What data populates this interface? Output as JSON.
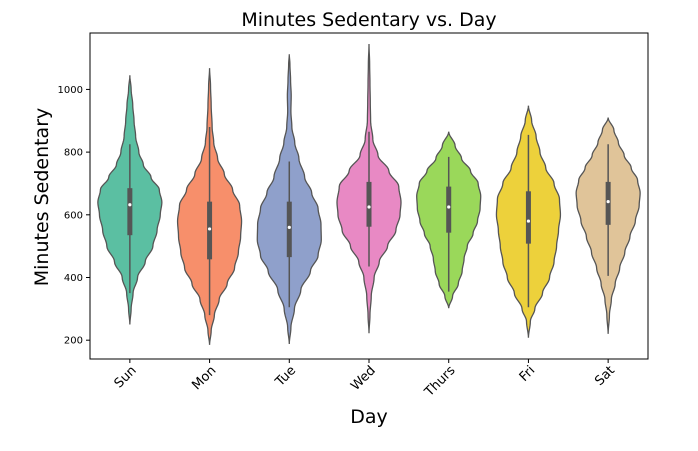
{
  "chart_data": {
    "type": "violin",
    "title": "Minutes Sedentary vs. Day",
    "xlabel": "Day",
    "ylabel": "Minutes Sedentary",
    "ylim": [
      140,
      1180
    ],
    "yticks": [
      200,
      400,
      600,
      800,
      1000
    ],
    "categories": [
      "Sun",
      "Mon",
      "Tue",
      "Wed",
      "Thurs",
      "Fri",
      "Sat"
    ],
    "colors": [
      "#5bbfa2",
      "#f78f6b",
      "#8fa0cb",
      "#e889c4",
      "#9ad85a",
      "#edd13b",
      "#e0c499"
    ],
    "outline_color": "#555555",
    "violins": [
      {
        "name": "Sun",
        "min": 250,
        "q1": 535,
        "median": 632,
        "q3": 685,
        "whisker_low": 350,
        "whisker_high": 825,
        "max": 1045,
        "profile": [
          [
            250,
            0
          ],
          [
            300,
            0.04
          ],
          [
            350,
            0.1
          ],
          [
            400,
            0.24
          ],
          [
            450,
            0.48
          ],
          [
            500,
            0.72
          ],
          [
            550,
            0.85
          ],
          [
            600,
            0.95
          ],
          [
            640,
            1.0
          ],
          [
            680,
            0.92
          ],
          [
            720,
            0.66
          ],
          [
            760,
            0.42
          ],
          [
            800,
            0.28
          ],
          [
            850,
            0.18
          ],
          [
            900,
            0.13
          ],
          [
            950,
            0.09
          ],
          [
            1000,
            0.04
          ],
          [
            1045,
            0
          ]
        ]
      },
      {
        "name": "Mon",
        "min": 185,
        "q1": 458,
        "median": 555,
        "q3": 642,
        "whisker_low": 280,
        "whisker_high": 880,
        "max": 1068,
        "profile": [
          [
            185,
            0
          ],
          [
            230,
            0.05
          ],
          [
            280,
            0.15
          ],
          [
            330,
            0.3
          ],
          [
            380,
            0.55
          ],
          [
            430,
            0.78
          ],
          [
            480,
            0.9
          ],
          [
            530,
            0.97
          ],
          [
            580,
            1.0
          ],
          [
            630,
            0.94
          ],
          [
            680,
            0.72
          ],
          [
            730,
            0.46
          ],
          [
            780,
            0.25
          ],
          [
            830,
            0.13
          ],
          [
            880,
            0.08
          ],
          [
            950,
            0.05
          ],
          [
            1010,
            0.03
          ],
          [
            1068,
            0
          ]
        ]
      },
      {
        "name": "Tue",
        "min": 188,
        "q1": 465,
        "median": 560,
        "q3": 642,
        "whisker_low": 305,
        "whisker_high": 770,
        "max": 1112,
        "profile": [
          [
            188,
            0
          ],
          [
            240,
            0.05
          ],
          [
            300,
            0.16
          ],
          [
            360,
            0.36
          ],
          [
            420,
            0.66
          ],
          [
            470,
            0.9
          ],
          [
            520,
            1.0
          ],
          [
            570,
            0.99
          ],
          [
            620,
            0.9
          ],
          [
            670,
            0.7
          ],
          [
            720,
            0.48
          ],
          [
            780,
            0.3
          ],
          [
            830,
            0.17
          ],
          [
            880,
            0.08
          ],
          [
            930,
            0.05
          ],
          [
            980,
            0.06
          ],
          [
            1030,
            0.04
          ],
          [
            1080,
            0.02
          ],
          [
            1112,
            0
          ]
        ]
      },
      {
        "name": "Wed",
        "min": 222,
        "q1": 562,
        "median": 625,
        "q3": 705,
        "whisker_low": 435,
        "whisker_high": 865,
        "max": 1145,
        "profile": [
          [
            222,
            0
          ],
          [
            280,
            0.03
          ],
          [
            340,
            0.07
          ],
          [
            400,
            0.16
          ],
          [
            450,
            0.32
          ],
          [
            500,
            0.58
          ],
          [
            550,
            0.84
          ],
          [
            600,
            0.97
          ],
          [
            640,
            1.0
          ],
          [
            690,
            0.93
          ],
          [
            740,
            0.62
          ],
          [
            790,
            0.28
          ],
          [
            840,
            0.12
          ],
          [
            900,
            0.05
          ],
          [
            960,
            0.04
          ],
          [
            1020,
            0.03
          ],
          [
            1080,
            0.02
          ],
          [
            1145,
            0
          ]
        ]
      },
      {
        "name": "Thurs",
        "min": 302,
        "q1": 543,
        "median": 625,
        "q3": 690,
        "whisker_low": 355,
        "whisker_high": 785,
        "max": 865,
        "profile": [
          [
            302,
            0
          ],
          [
            340,
            0.12
          ],
          [
            380,
            0.3
          ],
          [
            420,
            0.42
          ],
          [
            460,
            0.48
          ],
          [
            500,
            0.58
          ],
          [
            540,
            0.76
          ],
          [
            580,
            0.9
          ],
          [
            620,
            0.98
          ],
          [
            660,
            1.0
          ],
          [
            700,
            0.92
          ],
          [
            740,
            0.68
          ],
          [
            780,
            0.4
          ],
          [
            820,
            0.2
          ],
          [
            865,
            0
          ]
        ]
      },
      {
        "name": "Fri",
        "min": 208,
        "q1": 508,
        "median": 580,
        "q3": 675,
        "whisker_low": 305,
        "whisker_high": 855,
        "max": 948,
        "profile": [
          [
            208,
            0
          ],
          [
            260,
            0.06
          ],
          [
            300,
            0.2
          ],
          [
            350,
            0.44
          ],
          [
            400,
            0.66
          ],
          [
            450,
            0.8
          ],
          [
            500,
            0.88
          ],
          [
            550,
            0.94
          ],
          [
            600,
            1.0
          ],
          [
            650,
            0.97
          ],
          [
            700,
            0.8
          ],
          [
            750,
            0.54
          ],
          [
            800,
            0.36
          ],
          [
            850,
            0.24
          ],
          [
            900,
            0.1
          ],
          [
            948,
            0
          ]
        ]
      },
      {
        "name": "Sat",
        "min": 220,
        "q1": 568,
        "median": 642,
        "q3": 705,
        "whisker_low": 405,
        "whisker_high": 825,
        "max": 910,
        "profile": [
          [
            220,
            0
          ],
          [
            280,
            0.04
          ],
          [
            330,
            0.1
          ],
          [
            380,
            0.22
          ],
          [
            430,
            0.36
          ],
          [
            480,
            0.52
          ],
          [
            530,
            0.68
          ],
          [
            580,
            0.85
          ],
          [
            630,
            0.97
          ],
          [
            670,
            1.0
          ],
          [
            710,
            0.92
          ],
          [
            750,
            0.72
          ],
          [
            790,
            0.5
          ],
          [
            830,
            0.32
          ],
          [
            870,
            0.18
          ],
          [
            910,
            0
          ]
        ]
      }
    ]
  }
}
